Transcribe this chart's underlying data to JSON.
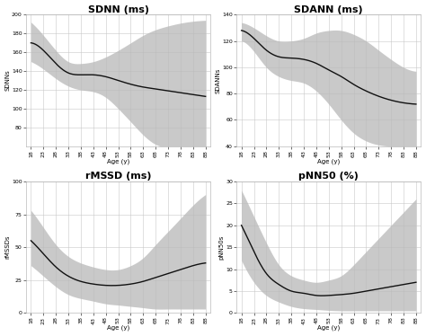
{
  "subplots": [
    {
      "title": "SDNN (ms)",
      "ylabel": "SDNNs",
      "xlabel": "Age (y)",
      "ylim": [
        60,
        200
      ],
      "yticks": [
        80,
        100,
        120,
        140,
        160,
        180,
        200
      ],
      "mean_x": [
        18,
        23,
        28,
        33,
        38,
        43,
        48,
        53,
        58,
        63,
        68,
        73,
        78,
        83,
        88
      ],
      "mean_y": [
        170,
        162,
        148,
        138,
        136,
        136,
        134,
        130,
        126,
        123,
        121,
        119,
        117,
        115,
        113
      ],
      "upper_y": [
        192,
        178,
        162,
        150,
        148,
        150,
        155,
        162,
        170,
        178,
        184,
        188,
        191,
        193,
        194
      ],
      "lower_y": [
        150,
        142,
        132,
        124,
        120,
        118,
        112,
        100,
        86,
        72,
        62,
        58,
        55,
        53,
        52
      ]
    },
    {
      "title": "SDANN (ms)",
      "ylabel": "SDANNs",
      "xlabel": "Age (y)",
      "ylim": [
        40,
        140
      ],
      "yticks": [
        40,
        60,
        80,
        100,
        120,
        140
      ],
      "mean_x": [
        18,
        23,
        28,
        33,
        38,
        43,
        48,
        53,
        58,
        63,
        68,
        73,
        78,
        83,
        88
      ],
      "mean_y": [
        128,
        122,
        113,
        108,
        107,
        106,
        103,
        98,
        93,
        87,
        82,
        78,
        75,
        73,
        72
      ],
      "upper_y": [
        134,
        130,
        124,
        120,
        120,
        122,
        126,
        128,
        128,
        125,
        120,
        113,
        106,
        100,
        97
      ],
      "lower_y": [
        120,
        112,
        100,
        93,
        90,
        88,
        82,
        72,
        60,
        50,
        44,
        41,
        40,
        40,
        40
      ]
    },
    {
      "title": "rMSSD (ms)",
      "ylabel": "rMSSDs",
      "xlabel": "Age (y)",
      "ylim": [
        0,
        100
      ],
      "yticks": [
        0,
        25,
        50,
        75,
        100
      ],
      "mean_x": [
        18,
        23,
        28,
        33,
        38,
        43,
        48,
        53,
        58,
        63,
        68,
        73,
        78,
        83,
        88
      ],
      "mean_y": [
        55,
        45,
        35,
        28,
        24,
        22,
        21,
        21,
        22,
        24,
        27,
        30,
        33,
        36,
        38
      ],
      "upper_y": [
        78,
        65,
        52,
        43,
        38,
        35,
        33,
        33,
        36,
        42,
        52,
        62,
        72,
        82,
        90
      ],
      "lower_y": [
        36,
        28,
        20,
        14,
        11,
        9,
        7,
        6,
        5,
        4,
        3,
        3,
        3,
        3,
        3
      ]
    },
    {
      "title": "pNN50 (%)",
      "ylabel": "pNN50s",
      "xlabel": "Age (y)",
      "ylim": [
        0,
        30
      ],
      "yticks": [
        0,
        5,
        10,
        15,
        20,
        25,
        30
      ],
      "mean_x": [
        18,
        23,
        28,
        33,
        38,
        43,
        48,
        53,
        58,
        63,
        68,
        73,
        78,
        83,
        88
      ],
      "mean_y": [
        20,
        14,
        9,
        6.5,
        5,
        4.5,
        4,
        4,
        4.2,
        4.5,
        5,
        5.5,
        6,
        6.5,
        7
      ],
      "upper_y": [
        28,
        22,
        16,
        11,
        8.5,
        7.5,
        7,
        7.5,
        8.5,
        11,
        14,
        17,
        20,
        23,
        26
      ],
      "lower_y": [
        12,
        7,
        4,
        2.5,
        1.5,
        1,
        0.8,
        0.6,
        0.5,
        0.5,
        0.5,
        0.5,
        0.5,
        0.5,
        0.5
      ]
    }
  ],
  "xticks": [
    18,
    23,
    28,
    33,
    38,
    43,
    48,
    53,
    58,
    63,
    68,
    73,
    78,
    83,
    88
  ],
  "fill_color": "#b8b8b8",
  "line_color": "#111111",
  "grid_color": "#c8c8c8",
  "background_color": "#ffffff",
  "title_fontsize": 8,
  "label_fontsize": 5,
  "tick_fontsize": 4.5
}
